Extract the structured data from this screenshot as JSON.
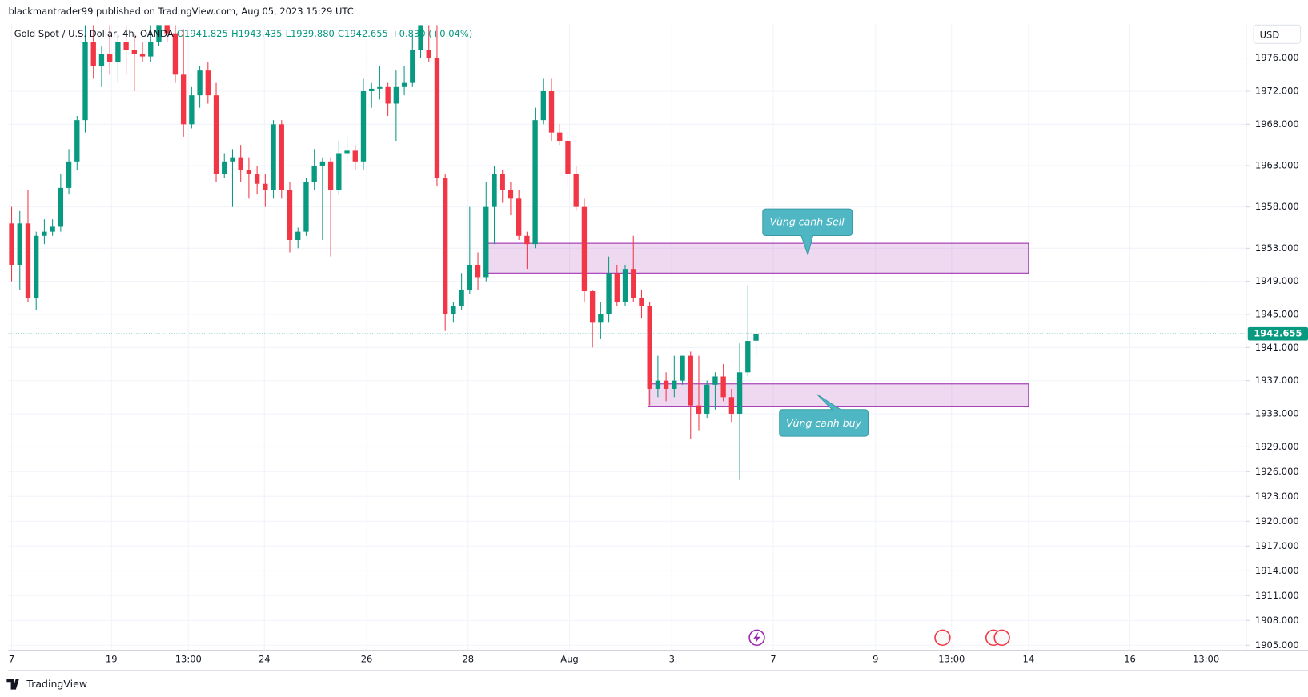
{
  "header": {
    "publisher": "blackmantrader99 published on TradingView.com, Aug 05, 2023 15:29 UTC",
    "brand": "TradingView"
  },
  "chart_data": {
    "type": "candlestick",
    "title": "Gold Spot / U.S. Dollar, 4h, OANDA",
    "legend": {
      "open": "O1941.825",
      "high": "H1943.435",
      "low": "L1939.880",
      "close": "C1942.655",
      "change": "+0.830 (+0.04%)"
    },
    "currency": "USD",
    "up_color": "#089981",
    "down_color": "#f23645",
    "grid": true,
    "open": [
      1956,
      1951,
      1956,
      1947,
      1954.5,
      1955,
      1955.6,
      1960.3,
      1963.5,
      1968.5,
      1978,
      1975,
      1976.5,
      1975.5,
      1978,
      1977,
      1976.5,
      1976.2,
      1978,
      1980.5,
      1979,
      1974,
      1968,
      1971.5,
      1974.5,
      1971.5,
      1962,
      1963.5,
      1964,
      1962.5,
      1962,
      1960.8,
      1960,
      1968,
      1960,
      1954,
      1955,
      1961,
      1963,
      1963.5,
      1960,
      1964.5,
      1964.8,
      1963.5,
      1972,
      1972.3,
      1972.5,
      1970.5,
      1972.5,
      1973,
      1977,
      1977,
      1976,
      1961.5,
      1945,
      1946,
      1948,
      1951,
      1949.5,
      1958,
      1962,
      1960,
      1959,
      1954.5,
      1953.5,
      1968.5,
      1972,
      1967,
      1966,
      1962,
      1958,
      1947.8,
      1944,
      1945,
      1950,
      1946.5,
      1950.5,
      1947,
      1946,
      1936,
      1937,
      1936,
      1937,
      1940,
      1934,
      1933,
      1936.5,
      1937.5,
      1935,
      1933,
      1938,
      1941.825
    ],
    "high": [
      1958,
      1957.5,
      1960,
      1955,
      1956.5,
      1956.5,
      1962,
      1965,
      1969,
      1980,
      1980,
      1977.5,
      1980,
      1979,
      1980,
      1979,
      1978,
      1980,
      1981,
      1981,
      1981,
      1979.5,
      1972.5,
      1975,
      1975.5,
      1973,
      1964.5,
      1965,
      1965.5,
      1964,
      1963,
      1962,
      1968.5,
      1968.5,
      1961,
      1955.5,
      1961.5,
      1965,
      1964,
      1964,
      1966,
      1966.5,
      1965.5,
      1973.5,
      1973,
      1975,
      1973,
      1974.5,
      1975,
      1979,
      1982,
      1980,
      1980,
      1962,
      1946.5,
      1950,
      1958,
      1952.5,
      1961,
      1963,
      1962.5,
      1961,
      1960,
      1955,
      1970,
      1973.5,
      1973.5,
      1968,
      1967,
      1963,
      1959,
      1948,
      1946.5,
      1952,
      1951,
      1951,
      1954.5,
      1948,
      1946.5,
      1940,
      1938,
      1940,
      1940,
      1940.5,
      1940,
      1937,
      1938,
      1939,
      1936,
      1941.5,
      1948.5,
      1943.435
    ],
    "low": [
      1949,
      1948,
      1946.5,
      1945.5,
      1953.5,
      1954.5,
      1955,
      1959.5,
      1962.5,
      1967,
      1973.5,
      1972.5,
      1974,
      1973,
      1974,
      1972,
      1975.5,
      1975.5,
      1977.5,
      1978,
      1973,
      1966.5,
      1967.5,
      1970,
      1970.5,
      1961,
      1961.5,
      1958,
      1961,
      1959,
      1959.5,
      1958,
      1959,
      1959,
      1952.5,
      1953,
      1954.5,
      1960,
      1954,
      1952,
      1959.5,
      1963.5,
      1962.5,
      1962.5,
      1970,
      1971,
      1969,
      1966,
      1971.5,
      1972.5,
      1976,
      1975.5,
      1960.5,
      1943,
      1944,
      1945.5,
      1947.5,
      1948,
      1949,
      1953.5,
      1958.5,
      1957,
      1954,
      1950.5,
      1953,
      1968,
      1966,
      1965.5,
      1960.5,
      1957.5,
      1946.5,
      1941,
      1942,
      1944,
      1946,
      1946,
      1946.5,
      1944.5,
      1934,
      1935,
      1934.5,
      1935,
      1936.5,
      1930,
      1931,
      1932.5,
      1933.5,
      1934.5,
      1932,
      1925,
      1937.5,
      1939.88
    ],
    "close": [
      1951,
      1956,
      1947,
      1954.5,
      1955,
      1955.6,
      1960.3,
      1963.5,
      1968.5,
      1978,
      1975,
      1976.5,
      1975.5,
      1978,
      1977,
      1976.5,
      1976.2,
      1978,
      1980.5,
      1979,
      1974,
      1968,
      1971.5,
      1974.5,
      1971.5,
      1962,
      1963.5,
      1964,
      1962.5,
      1962,
      1960.8,
      1960,
      1968,
      1960,
      1954,
      1955,
      1961,
      1963,
      1963.5,
      1960,
      1964.5,
      1964.8,
      1963.5,
      1972,
      1972.3,
      1972.5,
      1970.5,
      1972.5,
      1973,
      1977,
      1980,
      1976,
      1961.5,
      1945,
      1946,
      1948,
      1951,
      1949.5,
      1958,
      1962,
      1960,
      1959,
      1954.5,
      1953.5,
      1968.5,
      1972,
      1967,
      1966,
      1962,
      1958,
      1947.8,
      1944,
      1945,
      1950,
      1946.5,
      1950.5,
      1947,
      1946,
      1936,
      1937,
      1936,
      1937,
      1940,
      1934,
      1933,
      1936.5,
      1937.5,
      1935,
      1933,
      1938,
      1941.8,
      1942.655
    ],
    "last_price": 1942.655,
    "zones": [
      {
        "label": "Vùng canh Sell",
        "y": [
          1950.0,
          1953.6
        ],
        "x": [
          58.2,
          124.3
        ]
      },
      {
        "label": "Vùng canh buy",
        "y": [
          1933.9,
          1936.6
        ],
        "x": [
          77.8,
          124.3
        ]
      }
    ],
    "xlim": [
      -0.4,
      150.9
    ],
    "xticks": [
      {
        "value": 0,
        "label": "7"
      },
      {
        "value": 12.2,
        "label": "19"
      },
      {
        "value": 21.6,
        "label": "13:00"
      },
      {
        "value": 30.9,
        "label": "24"
      },
      {
        "value": 43.4,
        "label": "26"
      },
      {
        "value": 55.8,
        "label": "28"
      },
      {
        "value": 68.2,
        "label": "Aug"
      },
      {
        "value": 80.7,
        "label": "3"
      },
      {
        "value": 93.1,
        "label": "7"
      },
      {
        "value": 105.6,
        "label": "9"
      },
      {
        "value": 114.9,
        "label": "13:00"
      },
      {
        "value": 124.3,
        "label": "14"
      },
      {
        "value": 136.7,
        "label": "16"
      },
      {
        "value": 146,
        "label": "13:00"
      }
    ],
    "ylim": [
      1904.8,
      1980
    ],
    "yticks": [
      {
        "value": 1905,
        "label": "1905.000"
      },
      {
        "value": 1908,
        "label": "1908.000"
      },
      {
        "value": 1911,
        "label": "1911.000"
      },
      {
        "value": 1914,
        "label": "1914.000"
      },
      {
        "value": 1917,
        "label": "1917.000"
      },
      {
        "value": 1920,
        "label": "1920.000"
      },
      {
        "value": 1923,
        "label": "1923.000"
      },
      {
        "value": 1926,
        "label": "1926.000"
      },
      {
        "value": 1929,
        "label": "1929.000"
      },
      {
        "value": 1933,
        "label": "1933.000"
      },
      {
        "value": 1937,
        "label": "1937.000"
      },
      {
        "value": 1941,
        "label": "1941.000"
      },
      {
        "value": 1945,
        "label": "1945.000"
      },
      {
        "value": 1949,
        "label": "1949.000"
      },
      {
        "value": 1953,
        "label": "1953.000"
      },
      {
        "value": 1958,
        "label": "1958.000"
      },
      {
        "value": 1963,
        "label": "1963.000"
      },
      {
        "value": 1968,
        "label": "1968.000"
      },
      {
        "value": 1972,
        "label": "1972.000"
      },
      {
        "value": 1976,
        "label": "1976.000"
      }
    ]
  }
}
